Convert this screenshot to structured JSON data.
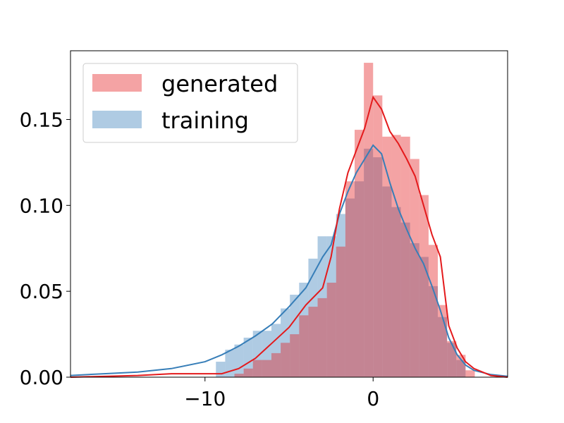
{
  "chart_data": {
    "type": "histogram",
    "xlim": [
      -18,
      8
    ],
    "ylim": [
      0,
      0.19
    ],
    "x_ticks": [
      {
        "value": -10,
        "label": "−10"
      },
      {
        "value": 0,
        "label": "0"
      }
    ],
    "y_ticks": [
      {
        "value": 0.0,
        "label": "0.00"
      },
      {
        "value": 0.05,
        "label": "0.05"
      },
      {
        "value": 0.1,
        "label": "0.10"
      },
      {
        "value": 0.15,
        "label": "0.15"
      }
    ],
    "grid": false,
    "legend": {
      "placement": "top-left"
    },
    "bin_width": 0.55,
    "series": [
      {
        "name": "training",
        "color": "#377eb8",
        "fill_color": "#377eb8",
        "fill_opacity": 0.4,
        "bins": [
          {
            "x0": -9.35,
            "value": 0.009
          },
          {
            "x0": -8.8,
            "value": 0.016
          },
          {
            "x0": -8.25,
            "value": 0.019
          },
          {
            "x0": -7.7,
            "value": 0.023
          },
          {
            "x0": -7.15,
            "value": 0.027
          },
          {
            "x0": -6.6,
            "value": 0.027
          },
          {
            "x0": -6.05,
            "value": 0.031
          },
          {
            "x0": -5.5,
            "value": 0.04
          },
          {
            "x0": -4.95,
            "value": 0.048
          },
          {
            "x0": -4.4,
            "value": 0.055
          },
          {
            "x0": -3.85,
            "value": 0.069
          },
          {
            "x0": -3.3,
            "value": 0.082
          },
          {
            "x0": -2.75,
            "value": 0.082
          },
          {
            "x0": -2.2,
            "value": 0.095
          },
          {
            "x0": -1.65,
            "value": 0.104
          },
          {
            "x0": -1.1,
            "value": 0.114
          },
          {
            "x0": -0.55,
            "value": 0.133
          },
          {
            "x0": 0.0,
            "value": 0.128
          },
          {
            "x0": 0.55,
            "value": 0.111
          },
          {
            "x0": 1.1,
            "value": 0.099
          },
          {
            "x0": 1.65,
            "value": 0.09
          },
          {
            "x0": 2.2,
            "value": 0.078
          },
          {
            "x0": 2.75,
            "value": 0.07
          },
          {
            "x0": 3.3,
            "value": 0.053
          },
          {
            "x0": 3.85,
            "value": 0.035
          },
          {
            "x0": 4.4,
            "value": 0.02
          },
          {
            "x0": 4.95,
            "value": 0.01
          }
        ],
        "kde": {
          "x": [
            -18,
            -16,
            -14,
            -12,
            -10,
            -9,
            -8,
            -7,
            -6,
            -5,
            -4,
            -3,
            -2.5,
            -2,
            -1.5,
            -1,
            -0.5,
            0,
            0.5,
            1,
            1.5,
            2,
            2.5,
            3,
            3.5,
            4,
            4.5,
            5,
            5.5,
            6,
            7,
            8
          ],
          "y": [
            0.001,
            0.002,
            0.003,
            0.005,
            0.009,
            0.013,
            0.018,
            0.024,
            0.031,
            0.041,
            0.052,
            0.07,
            0.077,
            0.095,
            0.108,
            0.119,
            0.127,
            0.135,
            0.13,
            0.113,
            0.098,
            0.086,
            0.075,
            0.066,
            0.053,
            0.039,
            0.023,
            0.013,
            0.007,
            0.004,
            0.0015,
            0.0005
          ]
        }
      },
      {
        "name": "generated",
        "color": "#e41a1c",
        "fill_color": "#e41a1c",
        "fill_opacity": 0.4,
        "bins": [
          {
            "x0": -8.25,
            "value": 0.002
          },
          {
            "x0": -7.7,
            "value": 0.005
          },
          {
            "x0": -7.15,
            "value": 0.01
          },
          {
            "x0": -6.6,
            "value": 0.01
          },
          {
            "x0": -6.05,
            "value": 0.014
          },
          {
            "x0": -5.5,
            "value": 0.02
          },
          {
            "x0": -4.95,
            "value": 0.025
          },
          {
            "x0": -4.4,
            "value": 0.036
          },
          {
            "x0": -3.85,
            "value": 0.041
          },
          {
            "x0": -3.3,
            "value": 0.046
          },
          {
            "x0": -2.75,
            "value": 0.055
          },
          {
            "x0": -2.2,
            "value": 0.076
          },
          {
            "x0": -1.65,
            "value": 0.114
          },
          {
            "x0": -1.1,
            "value": 0.144
          },
          {
            "x0": -0.55,
            "value": 0.183
          },
          {
            "x0": 0.0,
            "value": 0.164
          },
          {
            "x0": 0.55,
            "value": 0.14
          },
          {
            "x0": 1.1,
            "value": 0.141
          },
          {
            "x0": 1.65,
            "value": 0.14
          },
          {
            "x0": 2.2,
            "value": 0.127
          },
          {
            "x0": 2.75,
            "value": 0.106
          },
          {
            "x0": 3.3,
            "value": 0.077
          },
          {
            "x0": 3.85,
            "value": 0.042
          },
          {
            "x0": 4.4,
            "value": 0.021
          },
          {
            "x0": 4.95,
            "value": 0.013
          },
          {
            "x0": 5.5,
            "value": 0.004
          }
        ],
        "kde": {
          "x": [
            -18,
            -14,
            -12,
            -10,
            -9,
            -8,
            -7,
            -6,
            -5,
            -4,
            -3,
            -2.5,
            -2,
            -1.5,
            -1,
            -0.5,
            0,
            0.5,
            1,
            1.5,
            2,
            2.5,
            3,
            3.5,
            4,
            4.5,
            5,
            5.5,
            6,
            7,
            8
          ],
          "y": [
            0.0,
            0.001,
            0.002,
            0.002,
            0.002,
            0.005,
            0.011,
            0.02,
            0.029,
            0.042,
            0.052,
            0.07,
            0.098,
            0.119,
            0.132,
            0.145,
            0.163,
            0.156,
            0.143,
            0.136,
            0.127,
            0.117,
            0.1,
            0.083,
            0.07,
            0.03,
            0.017,
            0.009,
            0.005,
            0.001,
            0.0
          ]
        }
      }
    ]
  }
}
